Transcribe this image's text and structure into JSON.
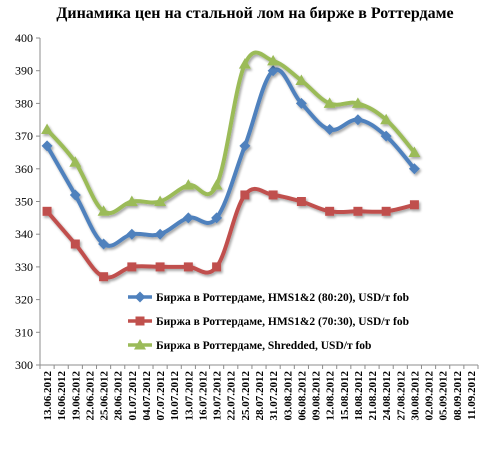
{
  "chart_data": {
    "type": "line",
    "title": "Динамика цен на стальной лом на бирже в Роттердаме",
    "xlabel": "",
    "ylabel": "",
    "ylim": [
      300,
      400
    ],
    "yticks": [
      "300",
      "310",
      "320",
      "330",
      "340",
      "350",
      "360",
      "370",
      "380",
      "390",
      "400"
    ],
    "grid": false,
    "legend_position": "bottom-right",
    "categories": [
      "13.06.2012",
      "16.06.2012",
      "19.06.2012",
      "22.06.2012",
      "25.06.2012",
      "28.06.2012",
      "01.07.2012",
      "04.07.2012",
      "07.07.2012",
      "10.07.2012",
      "13.07.2012",
      "16.07.2012",
      "19.07.2012",
      "22.07.2012",
      "25.07.2012",
      "28.07.2012",
      "31.07.2012",
      "03.08.2012",
      "06.08.2012",
      "09.08.2012",
      "12.08.2012",
      "15.08.2012",
      "18.08.2012",
      "21.08.2012",
      "24.08.2012",
      "27.08.2012",
      "30.08.2012",
      "02.09.2012",
      "05.09.2012",
      "08.09.2012",
      "11.09.2012"
    ],
    "series": [
      {
        "name": "Биржа в Роттердаме, HMS1&2 (80:20), USD/т fob",
        "color": "#4f81bd",
        "marker": "diamond",
        "points": [
          [
            0,
            367
          ],
          [
            2,
            352
          ],
          [
            4,
            337
          ],
          [
            6,
            340
          ],
          [
            8,
            340
          ],
          [
            10,
            345
          ],
          [
            12,
            345
          ],
          [
            14,
            367
          ],
          [
            16,
            390
          ],
          [
            18,
            380
          ],
          [
            20,
            372
          ],
          [
            22,
            375
          ],
          [
            24,
            370
          ],
          [
            26,
            360
          ]
        ]
      },
      {
        "name": "Биржа в Роттердаме, HMS1&2 (70:30), USD/т fob",
        "color": "#c0504d",
        "marker": "square",
        "points": [
          [
            0,
            347
          ],
          [
            2,
            337
          ],
          [
            4,
            327
          ],
          [
            6,
            330
          ],
          [
            8,
            330
          ],
          [
            10,
            330
          ],
          [
            12,
            330
          ],
          [
            14,
            352
          ],
          [
            16,
            352
          ],
          [
            18,
            350
          ],
          [
            20,
            347
          ],
          [
            22,
            347
          ],
          [
            24,
            347
          ],
          [
            26,
            349
          ]
        ]
      },
      {
        "name": "Биржа в Роттердаме, Shredded, USD/т fob",
        "color": "#9bbb59",
        "marker": "triangle",
        "points": [
          [
            0,
            372
          ],
          [
            2,
            362
          ],
          [
            4,
            347
          ],
          [
            6,
            350
          ],
          [
            8,
            350
          ],
          [
            10,
            355
          ],
          [
            12,
            355
          ],
          [
            14,
            392
          ],
          [
            16,
            393
          ],
          [
            18,
            387
          ],
          [
            20,
            380
          ],
          [
            22,
            380
          ],
          [
            24,
            375
          ],
          [
            26,
            365
          ]
        ]
      }
    ]
  }
}
